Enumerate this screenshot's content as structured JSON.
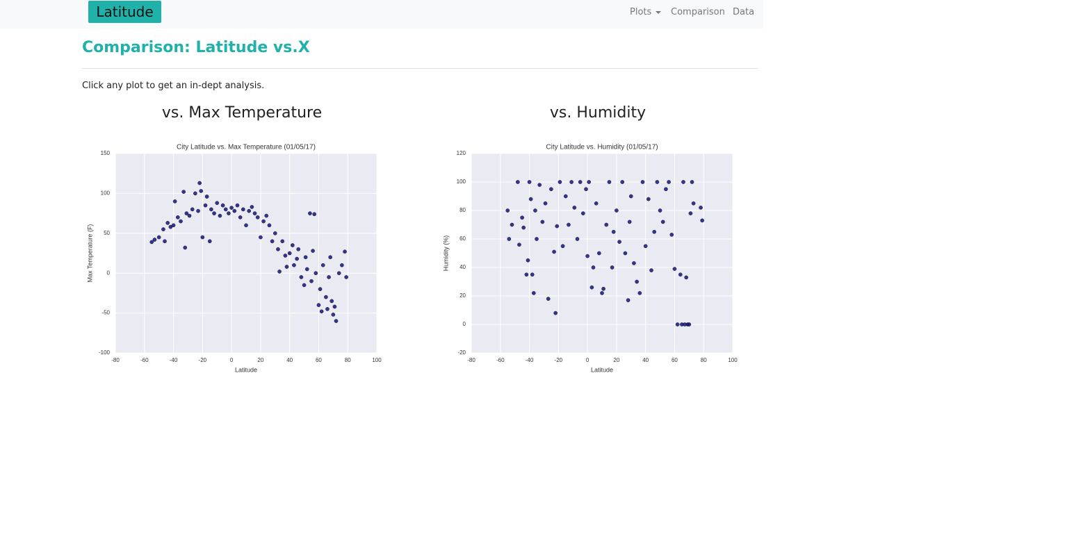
{
  "navbar": {
    "brand": "Latitude",
    "links": [
      "Plots",
      "Comparison",
      "Data"
    ]
  },
  "header": {
    "title": "Comparison: Latitude vs.X"
  },
  "intro": "Click any plot to get an in-dept analysis.",
  "panels": [
    {
      "heading": "vs. Max Temperature"
    },
    {
      "heading": "vs. Humidity"
    }
  ],
  "chart_data": [
    {
      "type": "scatter",
      "title": "City Latitude vs. Max Temperature (01/05/17)",
      "x_label": "Latitude",
      "y_label": "Max Temperature (F)",
      "x": [
        -55,
        -53,
        -50,
        -47,
        -46,
        -44,
        -42,
        -40,
        -39,
        -37,
        -35,
        -33,
        -32,
        -31,
        -29,
        -27,
        -25,
        -23,
        -22,
        -21,
        -20,
        -18,
        -17,
        -15,
        -14,
        -12,
        -10,
        -8,
        -6,
        -4,
        -2,
        0,
        2,
        4,
        6,
        8,
        10,
        12,
        14,
        16,
        18,
        20,
        22,
        24,
        26,
        28,
        30,
        32,
        33,
        35,
        37,
        38,
        40,
        42,
        43,
        45,
        46,
        48,
        50,
        51,
        52,
        54,
        55,
        56,
        57,
        58,
        60,
        61,
        62,
        63,
        65,
        66,
        67,
        68,
        69,
        70,
        71,
        72,
        74,
        76,
        78,
        79
      ],
      "values": [
        39,
        42,
        45,
        55,
        40,
        63,
        58,
        60,
        90,
        70,
        65,
        102,
        32,
        75,
        72,
        80,
        100,
        78,
        113,
        103,
        45,
        85,
        96,
        40,
        80,
        75,
        88,
        72,
        85,
        80,
        75,
        82,
        78,
        85,
        70,
        80,
        60,
        78,
        83,
        75,
        70,
        45,
        65,
        72,
        60,
        40,
        50,
        30,
        2,
        40,
        22,
        8,
        25,
        35,
        10,
        18,
        30,
        -5,
        -15,
        20,
        5,
        75,
        -10,
        28,
        74,
        0,
        -40,
        -20,
        -48,
        10,
        -30,
        -45,
        -5,
        20,
        -35,
        -52,
        -42,
        -60,
        0,
        10,
        27,
        -5
      ],
      "color": "#141482",
      "background": "#eaeaf2",
      "grid": true,
      "xlim": [
        -80,
        100
      ],
      "xticks": [
        -80,
        -60,
        -40,
        -20,
        0,
        20,
        40,
        60,
        80,
        100
      ],
      "ylim": [
        -100,
        150
      ],
      "yticks": [
        -100,
        -50,
        0,
        50,
        100,
        150
      ]
    },
    {
      "type": "scatter",
      "title": "City Latitude vs. Humidity (01/05/17)",
      "x_label": "Latitude",
      "y_label": "Humidity (%)",
      "x": [
        -55,
        -54,
        -52,
        -48,
        -47,
        -45,
        -44,
        -42,
        -41,
        -40,
        -39,
        -38,
        -37,
        -36,
        -35,
        -33,
        -31,
        -29,
        -27,
        -25,
        -23,
        -22,
        -21,
        -19,
        -17,
        -15,
        -13,
        -11,
        -9,
        -7,
        -5,
        -3,
        -1,
        0,
        1,
        3,
        4,
        6,
        8,
        10,
        11,
        13,
        15,
        17,
        18,
        20,
        22,
        24,
        26,
        28,
        29,
        30,
        32,
        34,
        36,
        38,
        40,
        42,
        44,
        46,
        48,
        50,
        52,
        54,
        56,
        58,
        60,
        62,
        64,
        65,
        66,
        67,
        68,
        69,
        70,
        71,
        72,
        73,
        78,
        79
      ],
      "values": [
        80,
        60,
        70,
        100,
        56,
        75,
        68,
        35,
        45,
        100,
        88,
        35,
        22,
        80,
        60,
        98,
        72,
        85,
        18,
        95,
        51,
        8,
        69,
        100,
        55,
        90,
        70,
        100,
        82,
        60,
        100,
        78,
        95,
        48,
        100,
        26,
        40,
        85,
        50,
        22,
        25,
        70,
        100,
        40,
        65,
        80,
        58,
        100,
        50,
        17,
        72,
        90,
        43,
        30,
        22,
        100,
        55,
        88,
        38,
        65,
        100,
        80,
        72,
        95,
        100,
        63,
        39,
        0,
        35,
        0,
        100,
        0,
        33,
        0,
        0,
        78,
        100,
        85,
        82,
        73
      ],
      "color": "#141482",
      "background": "#eaeaf2",
      "grid": true,
      "xlim": [
        -80,
        100
      ],
      "xticks": [
        -80,
        -60,
        -40,
        -20,
        0,
        20,
        40,
        60,
        80,
        100
      ],
      "ylim": [
        -20,
        120
      ],
      "yticks": [
        -20,
        0,
        20,
        40,
        60,
        80,
        100,
        120
      ]
    }
  ]
}
